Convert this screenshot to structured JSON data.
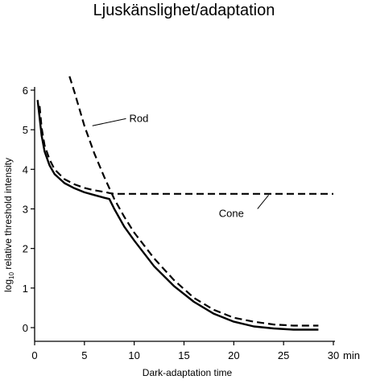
{
  "title": "Ljuskänslighet/adaptation",
  "chart_data": {
    "type": "line",
    "xlabel": "Dark-adaptation time",
    "x_unit": "min",
    "ylabel_prefix": "log",
    "ylabel_sub": "10",
    "ylabel_rest": " relative threshold intensity",
    "xlim": [
      0,
      30
    ],
    "ylim": [
      0,
      6
    ],
    "x_ticks": [
      "0",
      "5",
      "10",
      "15",
      "20",
      "25",
      "30"
    ],
    "y_ticks": [
      "0",
      "1",
      "2",
      "3",
      "4",
      "5",
      "6"
    ],
    "grid": false,
    "annotations": [
      {
        "text": "Rod",
        "x": 9.5,
        "y": 5.3,
        "pointer_to": [
          5.8,
          5.1
        ]
      },
      {
        "text": "Cone",
        "x": 18.5,
        "y": 2.9,
        "pointer_to": [
          23.5,
          3.35
        ]
      }
    ],
    "series": [
      {
        "name": "Rod",
        "style": "dashed",
        "x": [
          3.5,
          4,
          5,
          6,
          7,
          8,
          9,
          10,
          12,
          14,
          16,
          18,
          20,
          22,
          24,
          26,
          28.5
        ],
        "y": [
          6.35,
          5.95,
          5.1,
          4.4,
          3.8,
          3.25,
          2.8,
          2.4,
          1.75,
          1.2,
          0.75,
          0.45,
          0.25,
          0.15,
          0.08,
          0.05,
          0.05
        ]
      },
      {
        "name": "Cone",
        "style": "dashed",
        "x": [
          0.5,
          0.7,
          1,
          1.5,
          2,
          3,
          4,
          5,
          6,
          7,
          7.5,
          8,
          10,
          15,
          20,
          25,
          30
        ],
        "y": [
          5.6,
          5.05,
          4.6,
          4.25,
          4.0,
          3.75,
          3.62,
          3.53,
          3.47,
          3.43,
          3.4,
          3.38,
          3.38,
          3.38,
          3.38,
          3.38,
          3.38
        ]
      },
      {
        "name": "",
        "style": "solid",
        "x": [
          0.3,
          0.5,
          0.7,
          1,
          1.5,
          2,
          3,
          4,
          5,
          6,
          7,
          7.5,
          8,
          9,
          10,
          12,
          14,
          16,
          18,
          20,
          22,
          24,
          26,
          28.5
        ],
        "y": [
          5.75,
          5.3,
          4.85,
          4.45,
          4.1,
          3.88,
          3.65,
          3.52,
          3.42,
          3.35,
          3.28,
          3.25,
          3.0,
          2.55,
          2.2,
          1.55,
          1.05,
          0.65,
          0.35,
          0.15,
          0.03,
          -0.02,
          -0.05,
          -0.05
        ]
      }
    ]
  }
}
